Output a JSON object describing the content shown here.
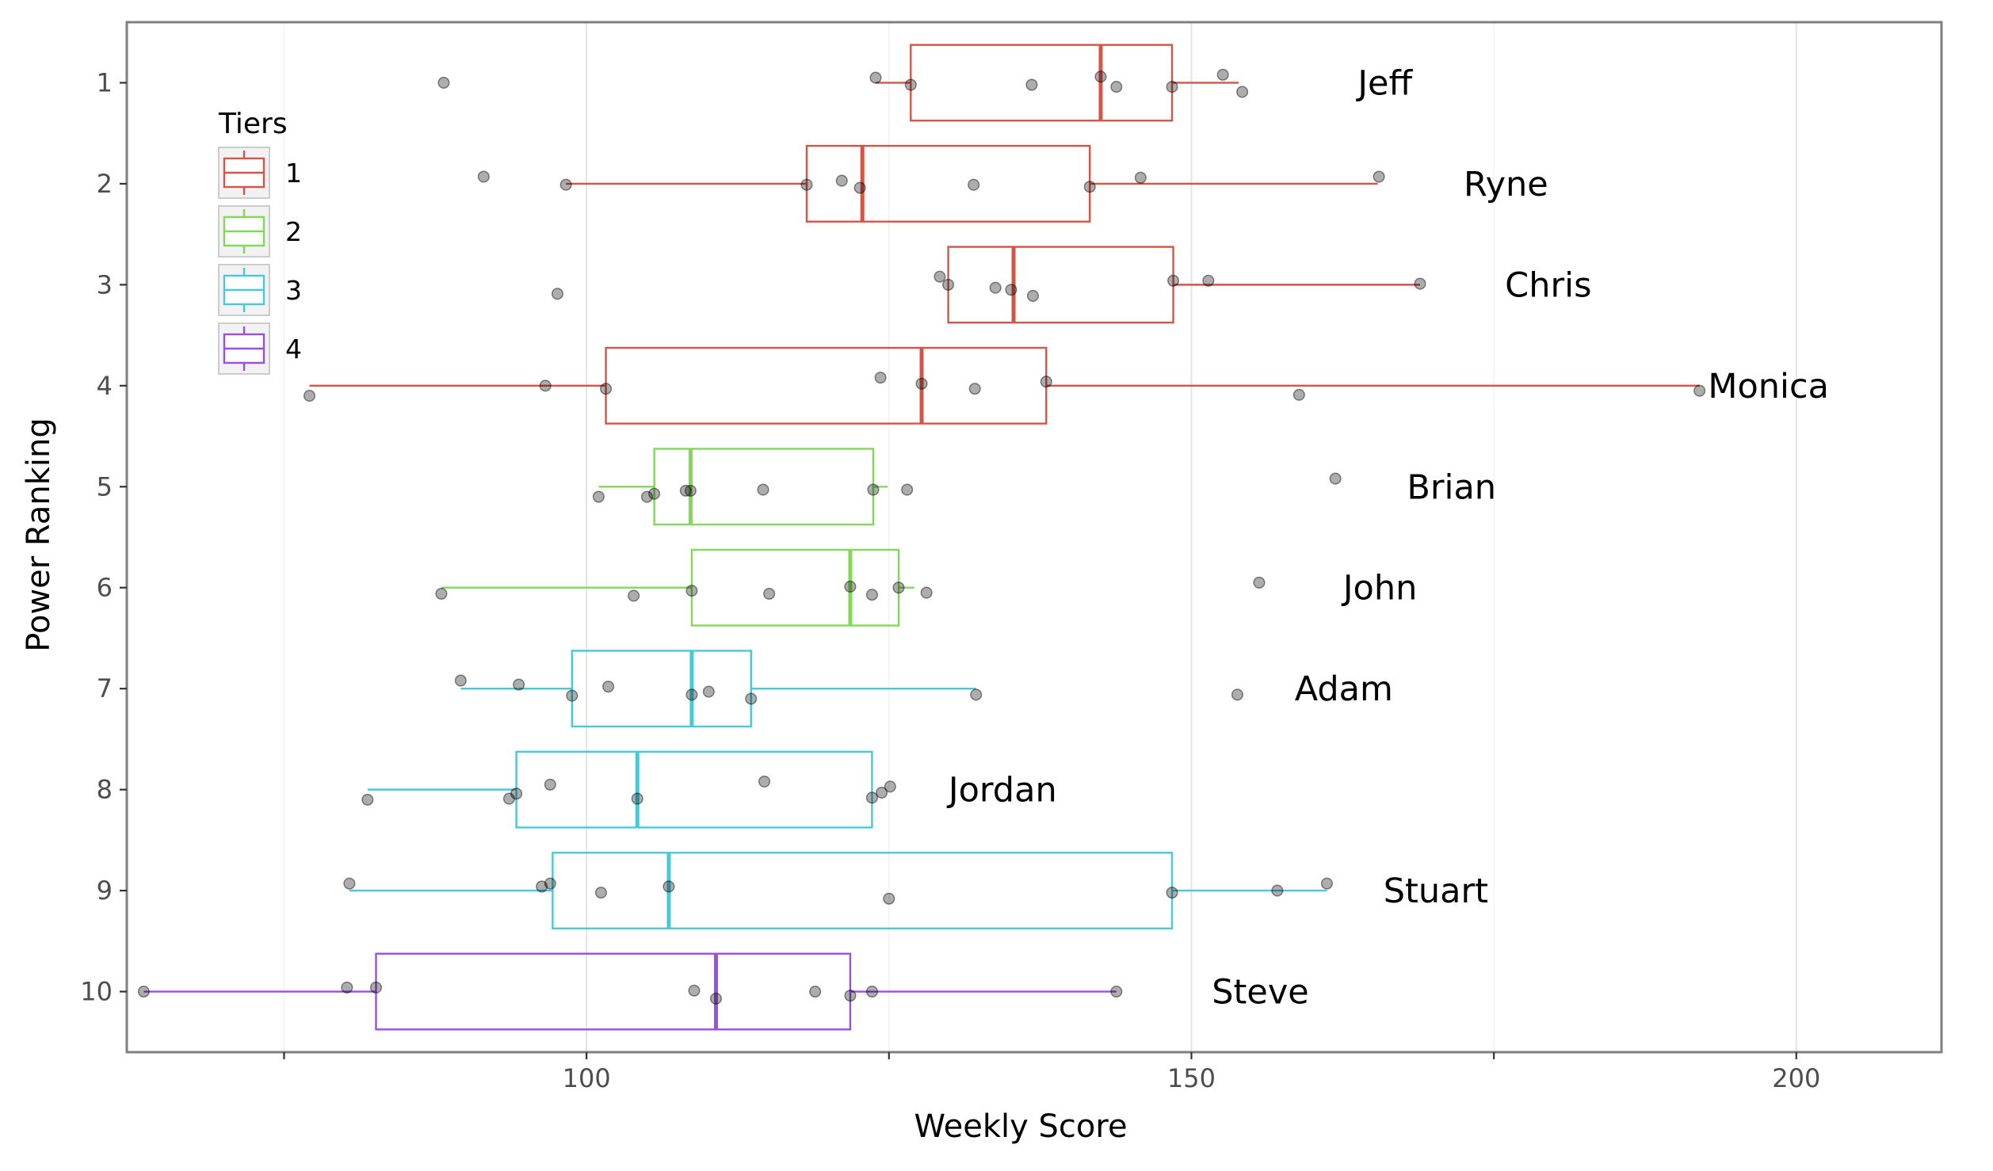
{
  "chart_data": {
    "type": "boxplot",
    "orientation": "horizontal",
    "title": "",
    "xlabel": "Weekly Score",
    "ylabel": "Power Ranking",
    "xlim": [
      62,
      212
    ],
    "xticks": [
      100,
      150,
      200
    ],
    "xticks_minor": [
      75,
      125,
      175
    ],
    "yticks": [
      "1",
      "2",
      "3",
      "4",
      "5",
      "6",
      "7",
      "8",
      "9",
      "10"
    ],
    "grid": true,
    "legend": {
      "title": "Tiers",
      "position": "top-left",
      "entries": [
        {
          "label": "1",
          "color": "#d35548"
        },
        {
          "label": "2",
          "color": "#83d85a"
        },
        {
          "label": "3",
          "color": "#49c8d6"
        },
        {
          "label": "4",
          "color": "#9b4fdf"
        }
      ]
    },
    "series": [
      {
        "rank": 1,
        "name": "Jeff",
        "tier": "1",
        "q1": 126.8,
        "median": 142.5,
        "q3": 148.4,
        "whisker_low": 123.9,
        "whisker_high": 153.9,
        "name_x": 166.0,
        "points": [
          [
            88.2,
            0.0
          ],
          [
            123.9,
            0.05
          ],
          [
            126.8,
            -0.02
          ],
          [
            136.8,
            -0.02
          ],
          [
            142.5,
            0.06
          ],
          [
            143.8,
            -0.04
          ],
          [
            148.4,
            -0.04
          ],
          [
            152.6,
            0.08
          ],
          [
            154.2,
            -0.09
          ]
        ]
      },
      {
        "rank": 2,
        "name": "Ryne",
        "tier": "1",
        "q1": 118.2,
        "median": 122.8,
        "q3": 141.6,
        "whisker_low": 98.3,
        "whisker_high": 165.4,
        "name_x": 176.0,
        "points": [
          [
            91.5,
            0.07
          ],
          [
            98.3,
            -0.01
          ],
          [
            118.2,
            -0.01
          ],
          [
            121.1,
            0.03
          ],
          [
            122.6,
            -0.04
          ],
          [
            132.0,
            -0.01
          ],
          [
            141.6,
            -0.03
          ],
          [
            145.8,
            0.06
          ],
          [
            165.5,
            0.07
          ]
        ]
      },
      {
        "rank": 3,
        "name": "Chris",
        "tier": "1",
        "q1": 129.9,
        "median": 135.3,
        "q3": 148.5,
        "whisker_low": 129.9,
        "whisker_high": 168.9,
        "name_x": 179.5,
        "points": [
          [
            97.6,
            -0.09
          ],
          [
            129.2,
            0.08
          ],
          [
            129.9,
            0.0
          ],
          [
            133.8,
            -0.03
          ],
          [
            135.1,
            -0.05
          ],
          [
            136.9,
            -0.11
          ],
          [
            148.5,
            0.04
          ],
          [
            151.4,
            0.04
          ],
          [
            168.9,
            0.01
          ]
        ]
      },
      {
        "rank": 4,
        "name": "Monica",
        "tier": "1",
        "q1": 101.6,
        "median": 127.7,
        "q3": 138.0,
        "whisker_low": 77.1,
        "whisker_high": 192.0,
        "name_x": 197.7,
        "points": [
          [
            77.1,
            -0.1
          ],
          [
            96.6,
            0.0
          ],
          [
            101.6,
            -0.03
          ],
          [
            124.3,
            0.08
          ],
          [
            127.7,
            0.02
          ],
          [
            132.1,
            -0.03
          ],
          [
            138.0,
            0.04
          ],
          [
            158.9,
            -0.09
          ],
          [
            192.0,
            -0.05
          ]
        ]
      },
      {
        "rank": 5,
        "name": "Brian",
        "tier": "2",
        "q1": 105.6,
        "median": 108.6,
        "q3": 123.7,
        "whisker_low": 101.0,
        "whisker_high": 124.9,
        "name_x": 171.5,
        "points": [
          [
            101.0,
            -0.1
          ],
          [
            105.0,
            -0.1
          ],
          [
            105.6,
            -0.07
          ],
          [
            108.2,
            -0.04
          ],
          [
            108.6,
            -0.04
          ],
          [
            114.6,
            -0.03
          ],
          [
            123.7,
            -0.03
          ],
          [
            126.5,
            -0.03
          ],
          [
            161.9,
            0.08
          ]
        ]
      },
      {
        "rank": 6,
        "name": "John",
        "tier": "2",
        "q1": 108.7,
        "median": 121.8,
        "q3": 125.8,
        "whisker_low": 88.0,
        "whisker_high": 127.1,
        "name_x": 165.6,
        "points": [
          [
            88.0,
            -0.06
          ],
          [
            103.9,
            -0.08
          ],
          [
            108.7,
            -0.03
          ],
          [
            115.1,
            -0.06
          ],
          [
            121.8,
            0.01
          ],
          [
            123.6,
            -0.07
          ],
          [
            125.8,
            0.0
          ],
          [
            128.1,
            -0.05
          ],
          [
            155.6,
            0.05
          ]
        ]
      },
      {
        "rank": 7,
        "name": "Adam",
        "tier": "3",
        "q1": 98.8,
        "median": 108.7,
        "q3": 113.6,
        "whisker_low": 89.6,
        "whisker_high": 132.2,
        "name_x": 162.6,
        "points": [
          [
            89.6,
            0.08
          ],
          [
            94.4,
            0.04
          ],
          [
            98.8,
            -0.07
          ],
          [
            101.8,
            0.02
          ],
          [
            108.7,
            -0.06
          ],
          [
            110.1,
            -0.03
          ],
          [
            113.6,
            -0.1
          ],
          [
            132.2,
            -0.06
          ],
          [
            153.8,
            -0.06
          ]
        ]
      },
      {
        "rank": 8,
        "name": "Jordan",
        "tier": "3",
        "q1": 94.2,
        "median": 104.2,
        "q3": 123.6,
        "whisker_low": 81.9,
        "whisker_high": 123.6,
        "name_x": 134.4,
        "points": [
          [
            81.9,
            -0.1
          ],
          [
            94.2,
            -0.04
          ],
          [
            93.6,
            -0.09
          ],
          [
            97.0,
            0.05
          ],
          [
            104.2,
            -0.09
          ],
          [
            114.7,
            0.08
          ],
          [
            123.6,
            -0.08
          ],
          [
            124.4,
            -0.03
          ],
          [
            125.1,
            0.03
          ]
        ]
      },
      {
        "rank": 9,
        "name": "Stuart",
        "tier": "3",
        "q1": 97.2,
        "median": 106.8,
        "q3": 148.4,
        "whisker_low": 80.4,
        "whisker_high": 161.2,
        "name_x": 170.2,
        "points": [
          [
            80.4,
            0.07
          ],
          [
            96.3,
            0.04
          ],
          [
            97.0,
            0.07
          ],
          [
            101.2,
            -0.02
          ],
          [
            106.8,
            0.04
          ],
          [
            125.0,
            -0.08
          ],
          [
            148.4,
            -0.02
          ],
          [
            157.1,
            0.0
          ],
          [
            161.2,
            0.07
          ]
        ]
      },
      {
        "rank": 10,
        "name": "Steve",
        "tier": "4",
        "q1": 82.6,
        "median": 110.7,
        "q3": 121.8,
        "whisker_low": 63.4,
        "whisker_high": 143.8,
        "name_x": 155.7,
        "points": [
          [
            63.4,
            0.0
          ],
          [
            80.2,
            0.04
          ],
          [
            82.6,
            0.04
          ],
          [
            108.9,
            0.01
          ],
          [
            110.7,
            -0.07
          ],
          [
            118.9,
            0.0
          ],
          [
            121.8,
            -0.04
          ],
          [
            123.6,
            0.0
          ],
          [
            143.8,
            0.0
          ]
        ]
      }
    ]
  }
}
